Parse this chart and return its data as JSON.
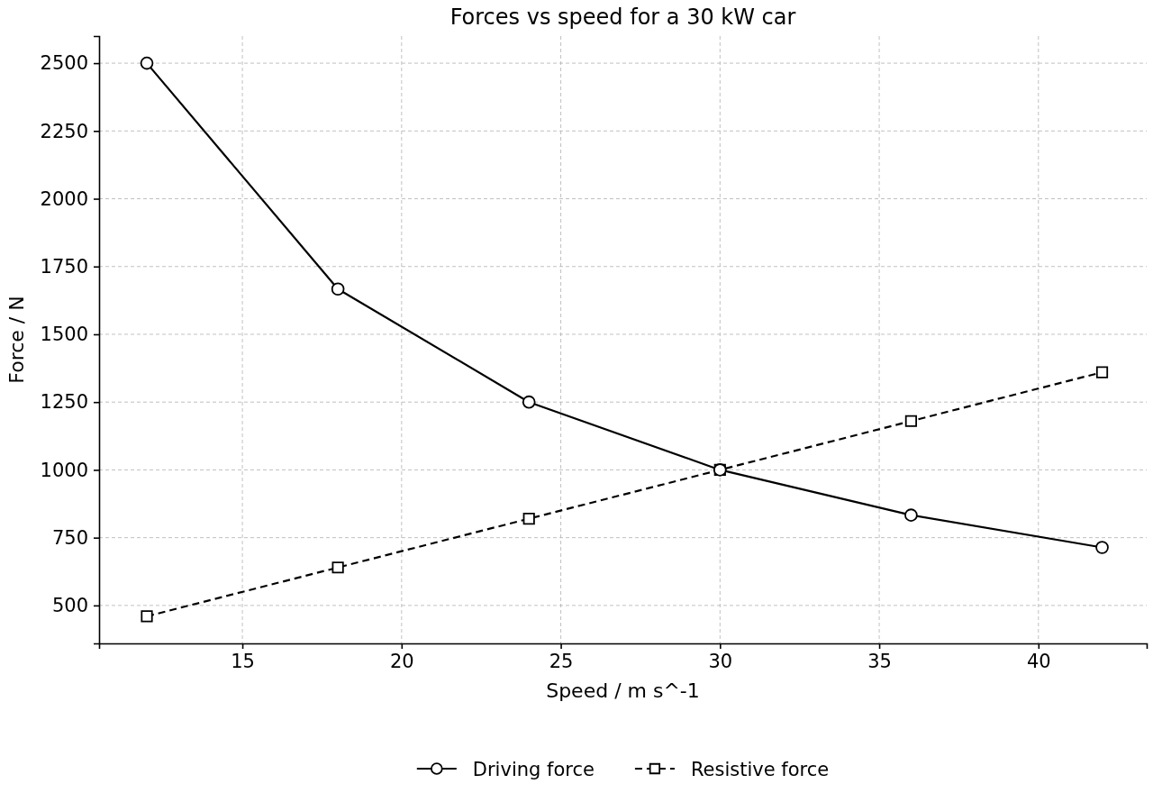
{
  "chart_data": {
    "type": "line",
    "title": "Forces vs speed for a 30 kW car",
    "xlabel": "Speed / m s^-1",
    "ylabel": "Force / N",
    "x": [
      12,
      18,
      24,
      30,
      36,
      42
    ],
    "series": [
      {
        "name": "Driving force",
        "color": "#000000",
        "values": [
          2500,
          1667,
          1250,
          1000,
          833,
          714
        ],
        "marker": "circle",
        "line_style": "solid"
      },
      {
        "name": "Resistive force",
        "color": "#000000",
        "values": [
          460,
          640,
          820,
          1000,
          1180,
          1360
        ],
        "marker": "square",
        "line_style": "dashed"
      }
    ],
    "xlim": [
      10.5,
      43.4
    ],
    "xticks": [
      15,
      20,
      25,
      30,
      35,
      40
    ],
    "ylim": [
      360,
      2600
    ],
    "yticks": [
      500,
      750,
      1000,
      1250,
      1500,
      1750,
      2000,
      2250,
      2500
    ],
    "grid": true,
    "legend": "bottom"
  }
}
